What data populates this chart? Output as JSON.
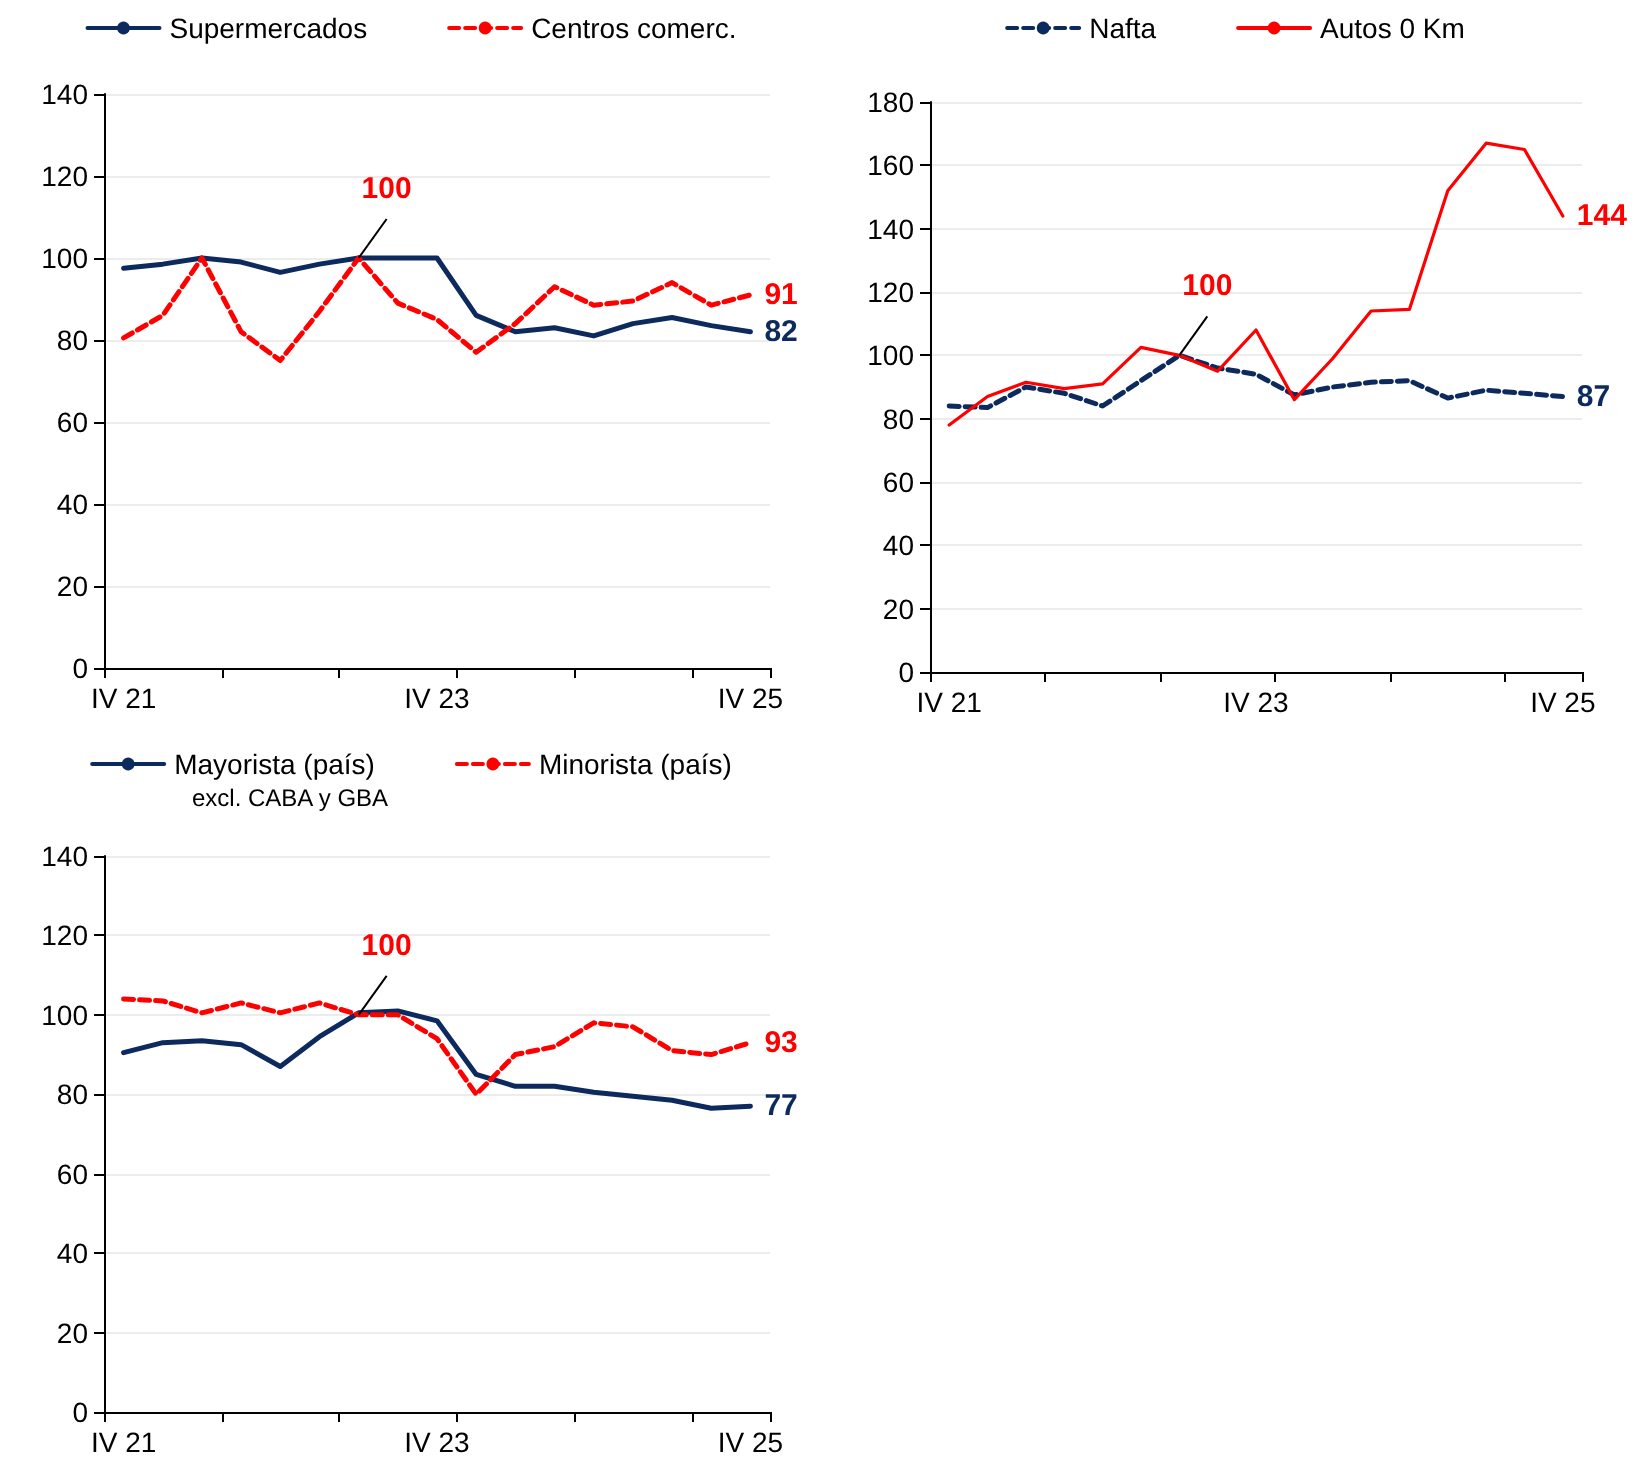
{
  "chart_data": [
    {
      "type": "line",
      "categories": [
        "IV 21",
        null,
        null,
        null,
        null,
        null,
        null,
        null,
        "IV 23",
        null,
        null,
        null,
        null,
        null,
        null,
        null,
        "IV 25"
      ],
      "ylim": [
        0,
        140
      ],
      "yticks": [
        0,
        20,
        40,
        60,
        80,
        100,
        120,
        140
      ],
      "grid": "y",
      "legend": "top",
      "marker": "none",
      "series": [
        {
          "name": "Supermercados",
          "color": "#0d2a5e",
          "line_style": "solid",
          "values": [
            97.5,
            98.5,
            100,
            99,
            96.5,
            98.5,
            100,
            100,
            100,
            86,
            82,
            83,
            81,
            84,
            85.5,
            83.5,
            82
          ],
          "value_labels": [
            null,
            null,
            null,
            null,
            null,
            null,
            null,
            null,
            null,
            null,
            null,
            null,
            null,
            null,
            null,
            null,
            "82"
          ]
        },
        {
          "name": "Centros comerc.",
          "color": "#ff0000",
          "line_style": "dashed",
          "values": [
            80.5,
            86,
            100,
            82,
            75,
            87,
            100,
            89,
            85,
            77,
            84,
            93,
            88.5,
            89.5,
            94,
            88.5,
            91
          ],
          "value_labels": [
            null,
            null,
            null,
            null,
            null,
            null,
            "100",
            null,
            null,
            null,
            null,
            null,
            null,
            null,
            null,
            null,
            "91"
          ]
        }
      ]
    },
    {
      "type": "line",
      "categories": [
        "IV 21",
        null,
        null,
        null,
        null,
        null,
        null,
        null,
        "IV 23",
        null,
        null,
        null,
        null,
        null,
        null,
        null,
        "IV 25"
      ],
      "ylim": [
        0,
        180
      ],
      "yticks": [
        0,
        20,
        40,
        60,
        80,
        100,
        120,
        140,
        160,
        180
      ],
      "grid": "y",
      "legend": "top",
      "marker": "none",
      "series": [
        {
          "name": "Nafta",
          "color": "#0d2a5e",
          "line_style": "dashed",
          "values": [
            84,
            83.5,
            90,
            88,
            84,
            92,
            100,
            96,
            94,
            87.5,
            90,
            91.5,
            92,
            86.5,
            89,
            88,
            87
          ],
          "value_labels": [
            null,
            null,
            null,
            null,
            null,
            null,
            null,
            null,
            null,
            null,
            null,
            null,
            null,
            null,
            null,
            null,
            "87"
          ]
        },
        {
          "name": "Autos 0 Km",
          "color": "#ff0000",
          "line_style": "solid",
          "values": [
            78,
            87,
            91.5,
            89.5,
            91,
            102.5,
            100,
            95,
            108,
            86,
            99,
            114,
            114.5,
            152,
            167,
            165,
            144
          ],
          "value_labels": [
            null,
            null,
            null,
            null,
            null,
            null,
            "100",
            null,
            null,
            null,
            null,
            null,
            null,
            null,
            null,
            null,
            "144"
          ]
        }
      ]
    },
    {
      "type": "line",
      "categories": [
        "IV 21",
        null,
        null,
        null,
        null,
        null,
        null,
        null,
        "IV 23",
        null,
        null,
        null,
        null,
        null,
        null,
        null,
        "IV 25"
      ],
      "ylim": [
        0,
        140
      ],
      "yticks": [
        0,
        20,
        40,
        60,
        80,
        100,
        120,
        140
      ],
      "grid": "y",
      "legend": "top",
      "marker": "none",
      "annotations": [
        "excl. CABA y GBA"
      ],
      "series": [
        {
          "name": "Mayorista (país)",
          "color": "#0d2a5e",
          "line_style": "solid",
          "values": [
            90.5,
            93,
            93.5,
            92.5,
            87,
            94.5,
            100.5,
            101,
            98.5,
            85,
            82,
            82,
            80.5,
            79.5,
            78.5,
            76.5,
            77
          ],
          "value_labels": [
            null,
            null,
            null,
            null,
            null,
            null,
            null,
            null,
            null,
            null,
            null,
            null,
            null,
            null,
            null,
            null,
            "77"
          ]
        },
        {
          "name": "Minorista (país)",
          "color": "#ff0000",
          "line_style": "dashed",
          "values": [
            104,
            103.5,
            100.5,
            103,
            100.5,
            103,
            100,
            100,
            94,
            80,
            90,
            92,
            98,
            97,
            91,
            90,
            93
          ],
          "value_labels": [
            null,
            null,
            null,
            null,
            null,
            null,
            "100",
            null,
            null,
            null,
            null,
            null,
            null,
            null,
            null,
            null,
            "93"
          ]
        }
      ]
    }
  ]
}
